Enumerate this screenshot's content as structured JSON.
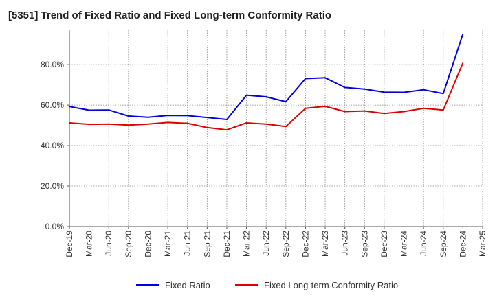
{
  "chart_data": {
    "type": "line",
    "title": "[5351]  Trend of Fixed Ratio and Fixed Long-term Conformity Ratio",
    "xlabel": "",
    "ylabel": "",
    "ylim": [
      0,
      97
    ],
    "yticks": [
      "0.0%",
      "20.0%",
      "40.0%",
      "60.0%",
      "80.0%"
    ],
    "ytick_values": [
      0,
      20,
      40,
      60,
      80
    ],
    "categories": [
      "Dec-19",
      "Mar-20",
      "Jun-20",
      "Sep-20",
      "Dec-20",
      "Mar-21",
      "Jun-21",
      "Sep-21",
      "Dec-21",
      "Mar-22",
      "Jun-22",
      "Sep-22",
      "Dec-22",
      "Mar-23",
      "Jun-23",
      "Sep-23",
      "Dec-23",
      "Mar-24",
      "Jun-24",
      "Sep-24",
      "Dec-24",
      "Mar-25"
    ],
    "grid": true,
    "legend_position": "bottom",
    "series": [
      {
        "name": "Fixed Ratio",
        "color": "#0000dd",
        "values": [
          59.3,
          57.5,
          57.6,
          54.6,
          54.0,
          54.9,
          54.8,
          53.9,
          52.9,
          64.9,
          64.1,
          61.7,
          73.1,
          73.5,
          68.7,
          67.9,
          66.4,
          66.3,
          67.6,
          65.7,
          95.2,
          null
        ]
      },
      {
        "name": "Fixed Long-term Conformity Ratio",
        "color": "#dd0000",
        "values": [
          51.2,
          50.5,
          50.6,
          50.1,
          50.6,
          51.4,
          51.0,
          48.9,
          47.8,
          51.2,
          50.6,
          49.4,
          58.4,
          59.4,
          56.8,
          57.1,
          55.9,
          56.8,
          58.4,
          57.6,
          80.9,
          null
        ]
      }
    ]
  }
}
